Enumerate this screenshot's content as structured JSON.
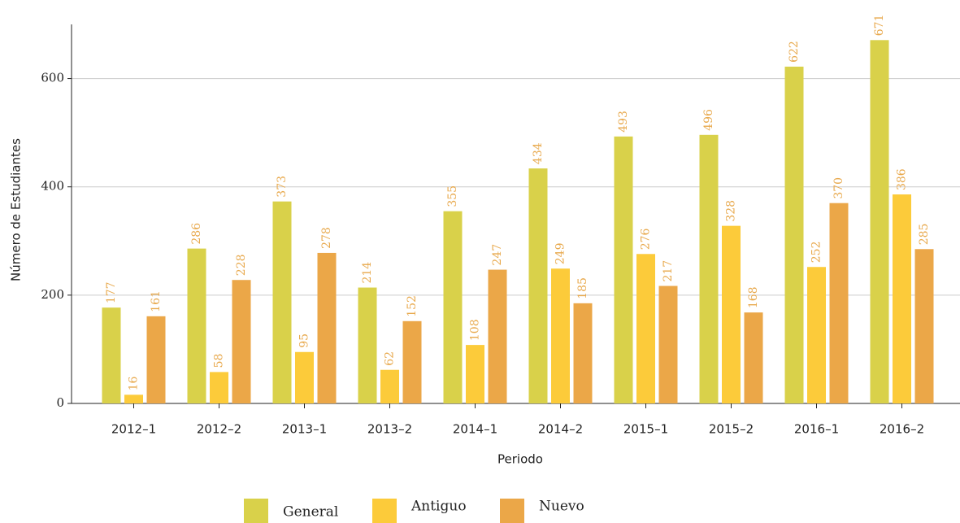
{
  "chart_data": {
    "type": "bar",
    "x_label": "Periodo",
    "y_label": "Número de Estudiantes",
    "categories": [
      "2012–1",
      "2012–2",
      "2013–1",
      "2013–2",
      "2014–1",
      "2014–2",
      "2015–1",
      "2015–2",
      "2016–1",
      "2016–2"
    ],
    "series": [
      {
        "name": "General",
        "color": "#d9d14a",
        "values": [
          177,
          286,
          373,
          214,
          355,
          434,
          493,
          496,
          622,
          671
        ]
      },
      {
        "name": "Antiguo",
        "color": "#fccb3a",
        "values": [
          16,
          58,
          95,
          62,
          108,
          249,
          276,
          328,
          252,
          386
        ]
      },
      {
        "name": "Nuevo",
        "color": "#eba748",
        "values": [
          161,
          228,
          278,
          152,
          247,
          185,
          217,
          168,
          370,
          285
        ]
      }
    ],
    "ylim": [
      0,
      700
    ],
    "yticks": [
      0,
      200,
      400,
      600
    ],
    "grid": true
  }
}
